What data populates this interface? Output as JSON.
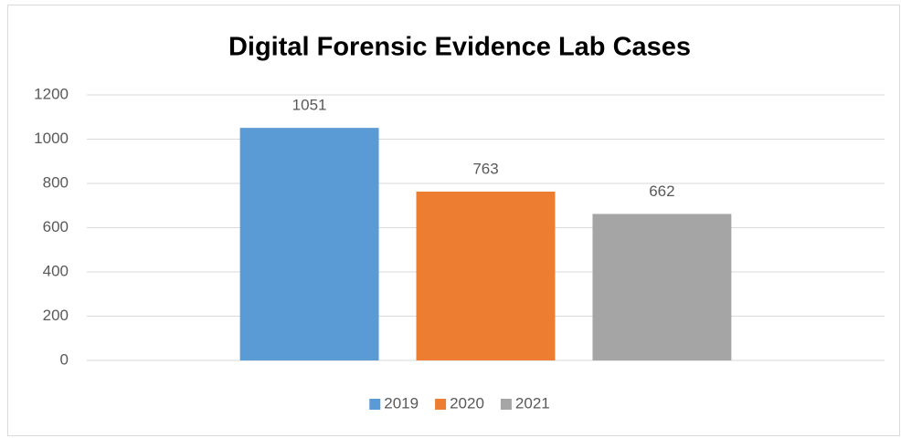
{
  "chart_data": {
    "type": "bar",
    "title": "Digital Forensic Evidence Lab Cases",
    "categories": [
      null
    ],
    "series": [
      {
        "name": "2019",
        "color": "#5b9bd5",
        "values": [
          1051
        ]
      },
      {
        "name": "2020",
        "color": "#ed7d31",
        "values": [
          763
        ]
      },
      {
        "name": "2021",
        "color": "#a5a5a5",
        "values": [
          662
        ]
      }
    ],
    "ylim": [
      0,
      1200
    ],
    "yticks": [
      0,
      200,
      400,
      600,
      800,
      1000,
      1200
    ],
    "grid": true,
    "legend": "bottom"
  }
}
